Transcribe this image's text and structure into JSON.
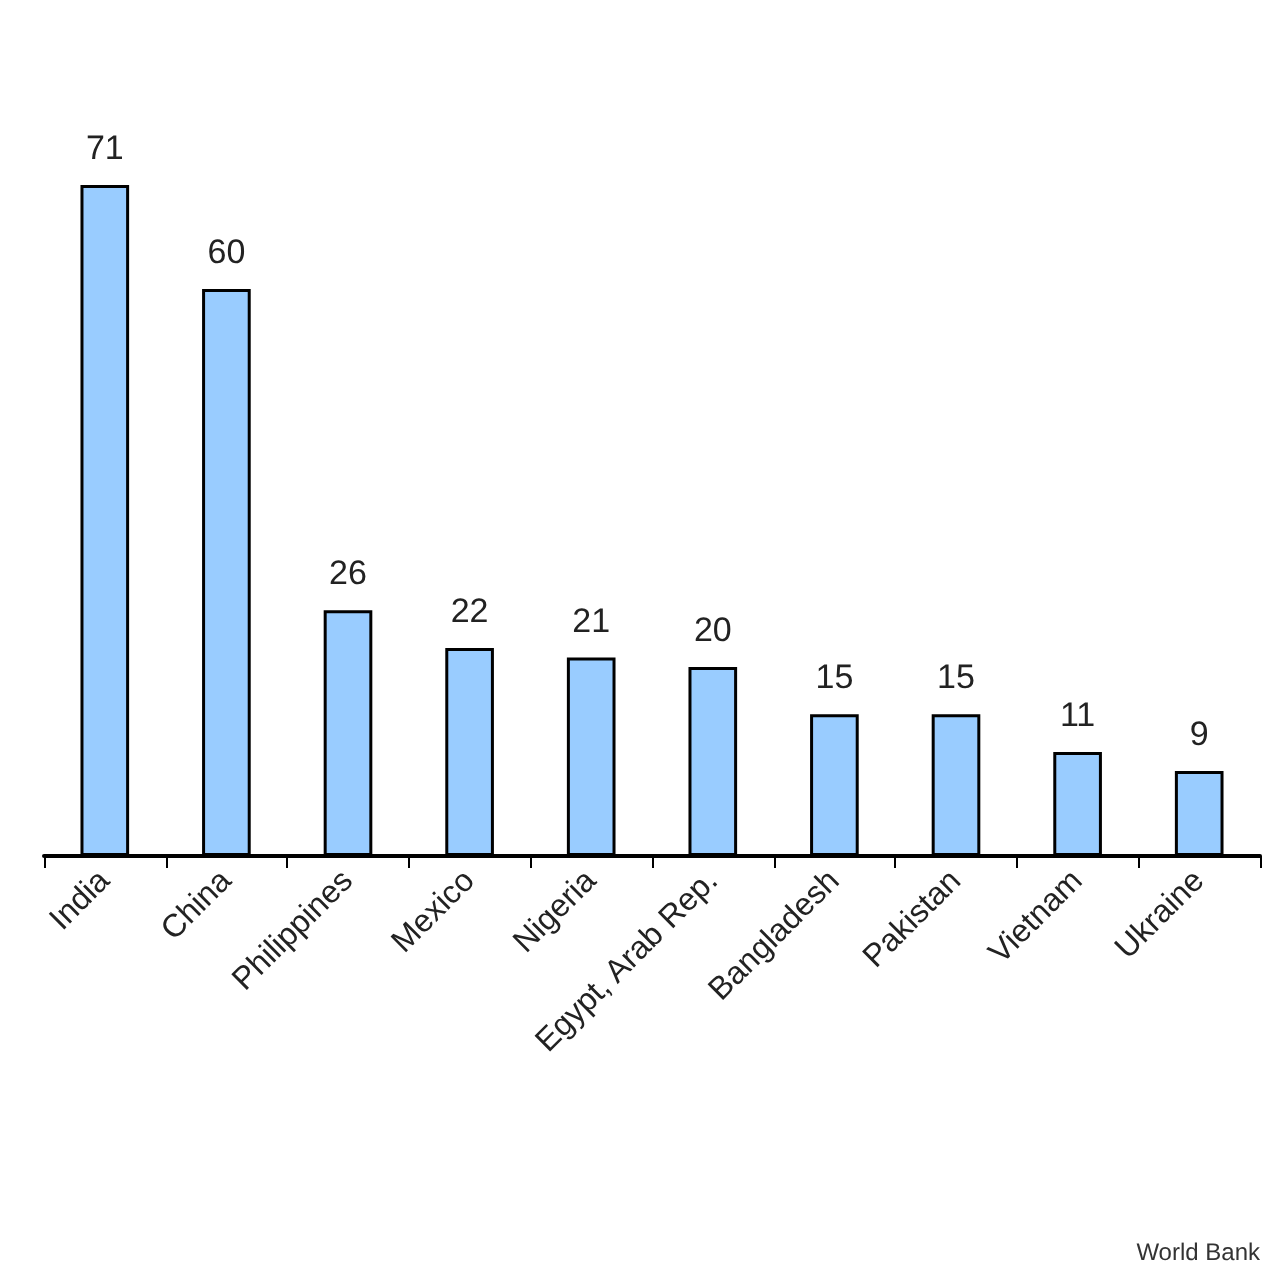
{
  "chart_data": {
    "type": "bar",
    "categories": [
      "India",
      "China",
      "Philippines",
      "Mexico",
      "Nigeria",
      "Egypt, Arab Rep.",
      "Bangladesh",
      "Pakistan",
      "Vietnam",
      "Ukraine"
    ],
    "values": [
      71,
      60,
      26,
      22,
      21,
      20,
      15,
      15,
      11,
      9
    ],
    "color": "#99ccff",
    "data_labels": true,
    "annotations": [
      "World Bank"
    ]
  }
}
